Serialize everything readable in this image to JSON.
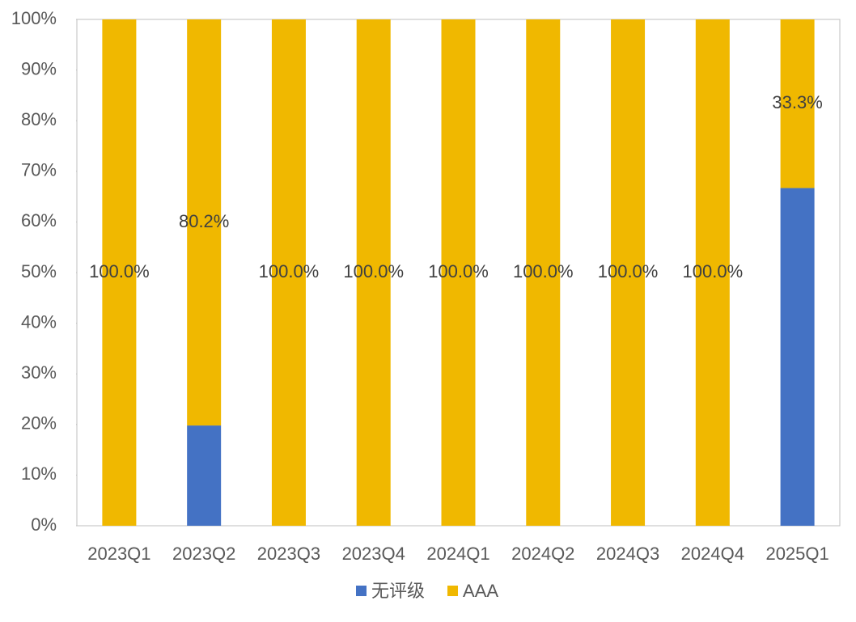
{
  "chart_data": {
    "type": "stacked_bar",
    "categories": [
      "2023Q1",
      "2023Q2",
      "2023Q3",
      "2023Q4",
      "2024Q1",
      "2024Q2",
      "2024Q3",
      "2024Q4",
      "2025Q1"
    ],
    "series": [
      {
        "name": "无评级",
        "color": "#4472c4",
        "values": [
          0,
          19.8,
          0,
          0,
          0,
          0,
          0,
          0,
          66.7
        ]
      },
      {
        "name": "AAA",
        "color": "#f0b800",
        "values": [
          100,
          80.2,
          100,
          100,
          100,
          100,
          100,
          100,
          33.3
        ],
        "value_labels": [
          "100.0%",
          "80.2%",
          "100.0%",
          "100.0%",
          "100.0%",
          "100.0%",
          "100.0%",
          "100.0%",
          "33.3%"
        ]
      }
    ],
    "ylim": [
      0,
      100
    ],
    "yticks": [
      {
        "value": 0,
        "label": "0%"
      },
      {
        "value": 10,
        "label": "10%"
      },
      {
        "value": 20,
        "label": "20%"
      },
      {
        "value": 30,
        "label": "30%"
      },
      {
        "value": 40,
        "label": "40%"
      },
      {
        "value": 50,
        "label": "50%"
      },
      {
        "value": 60,
        "label": "60%"
      },
      {
        "value": 70,
        "label": "70%"
      },
      {
        "value": 80,
        "label": "80%"
      },
      {
        "value": 90,
        "label": "90%"
      },
      {
        "value": 100,
        "label": "100%"
      }
    ],
    "legend": "bottom"
  }
}
